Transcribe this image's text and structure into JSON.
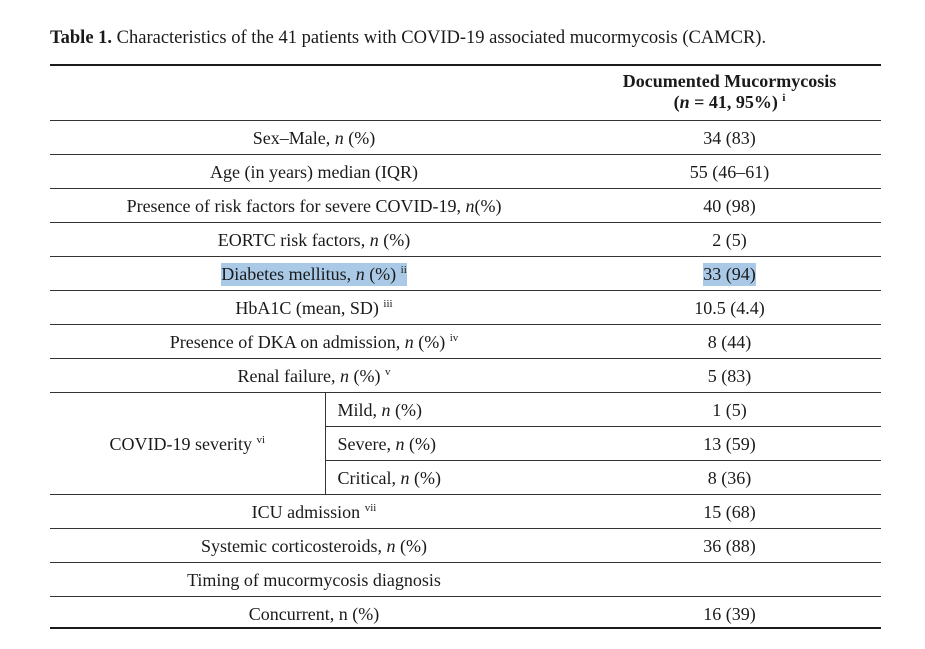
{
  "caption": {
    "label": "Table 1.",
    "text": " Characteristics of the 41 patients with COVID-19 associated mucormycosis (CAMCR)."
  },
  "header": {
    "col_title": "Documented Mucormycosis",
    "col_n_prefix": "(",
    "col_n_italic": "n",
    "col_n_rest": " = 41, 95%)",
    "col_sup": "i"
  },
  "rows": {
    "sex": {
      "pre": "Sex–Male, ",
      "ital": "n",
      "post": " (%)",
      "value": "34 (83)"
    },
    "age": {
      "label": "Age (in years) median (IQR)",
      "value": "55 (46–61)"
    },
    "risk": {
      "pre": "Presence of risk factors for severe COVID-19, ",
      "ital": "n",
      "post": "(%)",
      "value": "40 (98)"
    },
    "eortc": {
      "pre": "EORTC risk factors, ",
      "ital": "n",
      "post": " (%)",
      "value": "2 (5)"
    },
    "diabetes": {
      "pre": "Diabetes mellitus, ",
      "ital": "n",
      "post": " (%) ",
      "sup": "ii",
      "value": "33 (94)"
    },
    "hba1c": {
      "label": "HbA1C (mean, SD) ",
      "sup": "iii",
      "value": "10.5 (4.4)"
    },
    "dka": {
      "pre": "Presence of DKA on admission, ",
      "ital": "n",
      "post": " (%) ",
      "sup": "iv",
      "value": "8 (44)"
    },
    "renal": {
      "pre": "Renal failure, ",
      "ital": "n",
      "post": " (%) ",
      "sup": "v",
      "value": "5 (83)"
    },
    "severity": {
      "label": "COVID-19 severity ",
      "sup": "vi",
      "mild": {
        "pre": "Mild, ",
        "ital": "n",
        "post": " (%)",
        "value": "1 (5)"
      },
      "severe": {
        "pre": "Severe, ",
        "ital": "n",
        "post": " (%)",
        "value": "13 (59)"
      },
      "critical": {
        "pre": "Critical, ",
        "ital": "n",
        "post": " (%)",
        "value": "8 (36)"
      }
    },
    "icu": {
      "label": "ICU admission ",
      "sup": "vii",
      "value": "15 (68)"
    },
    "steroids": {
      "pre": "Systemic corticosteroids, ",
      "ital": "n",
      "post": " (%)",
      "value": "36 (88)"
    },
    "timing": {
      "label": "Timing of mucormycosis diagnosis",
      "value": ""
    },
    "concurrent": {
      "label": "Concurrent, n (%)",
      "value": "16 (39)"
    }
  },
  "colors": {
    "highlight": "#a9c9e6",
    "rule": "#1a1a1a"
  }
}
